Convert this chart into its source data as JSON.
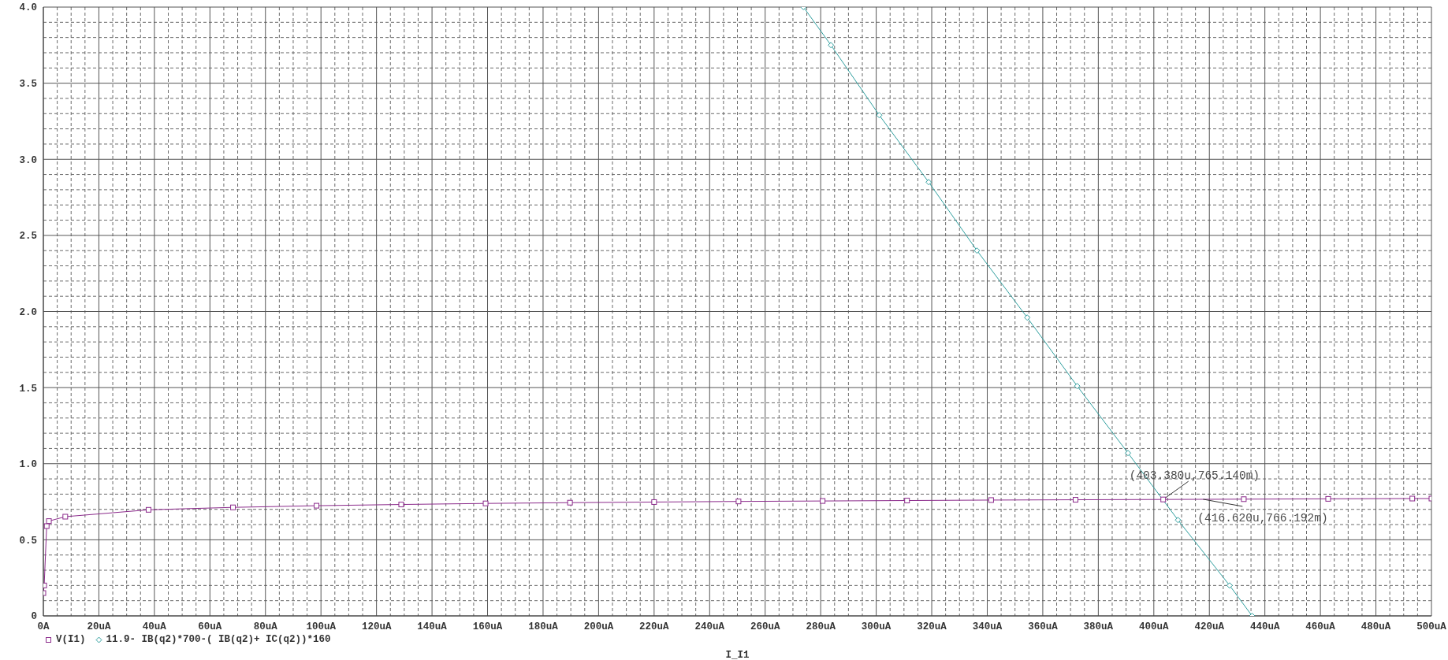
{
  "chart_data": {
    "type": "line",
    "xlabel": "I_I1",
    "grid": true,
    "legend": "bottom left",
    "xlim": [
      0,
      500
    ],
    "xticks": [
      {
        "value": 0,
        "label": "0A"
      },
      {
        "value": 5,
        "label": null
      },
      {
        "value": 10,
        "label": null
      },
      {
        "value": 15,
        "label": null
      },
      {
        "value": 20,
        "label": "20uA"
      },
      {
        "value": 25,
        "label": null
      },
      {
        "value": 30,
        "label": null
      },
      {
        "value": 35,
        "label": null
      },
      {
        "value": 40,
        "label": "40uA"
      },
      {
        "value": 45,
        "label": null
      },
      {
        "value": 50,
        "label": null
      },
      {
        "value": 55,
        "label": null
      },
      {
        "value": 60,
        "label": "60uA"
      },
      {
        "value": 65,
        "label": null
      },
      {
        "value": 70,
        "label": null
      },
      {
        "value": 75,
        "label": null
      },
      {
        "value": 80,
        "label": "80uA"
      },
      {
        "value": 85,
        "label": null
      },
      {
        "value": 90,
        "label": null
      },
      {
        "value": 95,
        "label": null
      },
      {
        "value": 100,
        "label": "100uA"
      },
      {
        "value": 105,
        "label": null
      },
      {
        "value": 110,
        "label": null
      },
      {
        "value": 115,
        "label": null
      },
      {
        "value": 120,
        "label": "120uA"
      },
      {
        "value": 125,
        "label": null
      },
      {
        "value": 130,
        "label": null
      },
      {
        "value": 135,
        "label": null
      },
      {
        "value": 140,
        "label": "140uA"
      },
      {
        "value": 145,
        "label": null
      },
      {
        "value": 150,
        "label": null
      },
      {
        "value": 155,
        "label": null
      },
      {
        "value": 160,
        "label": "160uA"
      },
      {
        "value": 165,
        "label": null
      },
      {
        "value": 170,
        "label": null
      },
      {
        "value": 175,
        "label": null
      },
      {
        "value": 180,
        "label": "180uA"
      },
      {
        "value": 185,
        "label": null
      },
      {
        "value": 190,
        "label": null
      },
      {
        "value": 195,
        "label": null
      },
      {
        "value": 200,
        "label": "200uA"
      },
      {
        "value": 205,
        "label": null
      },
      {
        "value": 210,
        "label": null
      },
      {
        "value": 215,
        "label": null
      },
      {
        "value": 220,
        "label": "220uA"
      },
      {
        "value": 225,
        "label": null
      },
      {
        "value": 230,
        "label": null
      },
      {
        "value": 235,
        "label": null
      },
      {
        "value": 240,
        "label": "240uA"
      },
      {
        "value": 245,
        "label": null
      },
      {
        "value": 250,
        "label": null
      },
      {
        "value": 255,
        "label": null
      },
      {
        "value": 260,
        "label": "260uA"
      },
      {
        "value": 265,
        "label": null
      },
      {
        "value": 270,
        "label": null
      },
      {
        "value": 275,
        "label": null
      },
      {
        "value": 280,
        "label": "280uA"
      },
      {
        "value": 285,
        "label": null
      },
      {
        "value": 290,
        "label": null
      },
      {
        "value": 295,
        "label": null
      },
      {
        "value": 300,
        "label": "300uA"
      },
      {
        "value": 305,
        "label": null
      },
      {
        "value": 310,
        "label": null
      },
      {
        "value": 315,
        "label": null
      },
      {
        "value": 320,
        "label": "320uA"
      },
      {
        "value": 325,
        "label": null
      },
      {
        "value": 330,
        "label": null
      },
      {
        "value": 335,
        "label": null
      },
      {
        "value": 340,
        "label": "340uA"
      },
      {
        "value": 345,
        "label": null
      },
      {
        "value": 350,
        "label": null
      },
      {
        "value": 355,
        "label": null
      },
      {
        "value": 360,
        "label": "360uA"
      },
      {
        "value": 365,
        "label": null
      },
      {
        "value": 370,
        "label": null
      },
      {
        "value": 375,
        "label": null
      },
      {
        "value": 380,
        "label": "380uA"
      },
      {
        "value": 385,
        "label": null
      },
      {
        "value": 390,
        "label": null
      },
      {
        "value": 395,
        "label": null
      },
      {
        "value": 400,
        "label": "400uA"
      },
      {
        "value": 405,
        "label": null
      },
      {
        "value": 410,
        "label": null
      },
      {
        "value": 415,
        "label": null
      },
      {
        "value": 420,
        "label": "420uA"
      },
      {
        "value": 425,
        "label": null
      },
      {
        "value": 430,
        "label": null
      },
      {
        "value": 435,
        "label": null
      },
      {
        "value": 440,
        "label": "440uA"
      },
      {
        "value": 445,
        "label": null
      },
      {
        "value": 450,
        "label": null
      },
      {
        "value": 455,
        "label": null
      },
      {
        "value": 460,
        "label": "460uA"
      },
      {
        "value": 465,
        "label": null
      },
      {
        "value": 470,
        "label": null
      },
      {
        "value": 475,
        "label": null
      },
      {
        "value": 480,
        "label": "480uA"
      },
      {
        "value": 485,
        "label": null
      },
      {
        "value": 490,
        "label": null
      },
      {
        "value": 495,
        "label": null
      },
      {
        "value": 500,
        "label": "500uA"
      }
    ],
    "ylim": [
      0,
      4
    ],
    "yticks": [
      0,
      {
        "value": 0.1,
        "label": null
      },
      {
        "value": 0.2,
        "label": null
      },
      {
        "value": 0.3,
        "label": null
      },
      {
        "value": 0.4,
        "label": null
      },
      0.5,
      {
        "value": 0.6,
        "label": null
      },
      {
        "value": 0.7,
        "label": null
      },
      {
        "value": 0.8,
        "label": null
      },
      {
        "value": 0.9,
        "label": null
      },
      {
        "value": 1,
        "label": "1.0"
      },
      {
        "value": 1.1,
        "label": null
      },
      {
        "value": 1.2,
        "label": null
      },
      {
        "value": 1.3,
        "label": null
      },
      {
        "value": 1.4,
        "label": null
      },
      1.5,
      {
        "value": 1.6,
        "label": null
      },
      {
        "value": 1.7,
        "label": null
      },
      {
        "value": 1.8,
        "label": null
      },
      {
        "value": 1.9,
        "label": null
      },
      {
        "value": 2,
        "label": "2.0"
      },
      {
        "value": 2.1,
        "label": null
      },
      {
        "value": 2.2,
        "label": null
      },
      {
        "value": 2.3,
        "label": null
      },
      {
        "value": 2.4,
        "label": null
      },
      2.5,
      {
        "value": 2.6,
        "label": null
      },
      {
        "value": 2.7,
        "label": null
      },
      {
        "value": 2.8,
        "label": null
      },
      {
        "value": 2.9,
        "label": null
      },
      {
        "value": 3,
        "label": "3.0"
      },
      {
        "value": 3.1,
        "label": null
      },
      {
        "value": 3.2,
        "label": null
      },
      {
        "value": 3.3,
        "label": null
      },
      {
        "value": 3.4,
        "label": null
      },
      3.5,
      {
        "value": 3.6,
        "label": null
      },
      {
        "value": 3.7,
        "label": null
      },
      {
        "value": 3.8,
        "label": null
      },
      {
        "value": 3.9,
        "label": null
      },
      {
        "value": 4,
        "label": "4.0"
      }
    ],
    "series": [
      {
        "name": "V(I1)",
        "color": "#8b2a8b",
        "marker": "square",
        "x": [
          0,
          0.3,
          1.2,
          2,
          7.9,
          37.9,
          68.3,
          98.4,
          128.9,
          159.3,
          189.7,
          220,
          250.4,
          280.7,
          311.1,
          341.4,
          371.8,
          403.38,
          432.4,
          462.8,
          493.1,
          500
        ],
        "values": [
          0.15,
          0.2,
          0.59,
          0.623,
          0.652,
          0.697,
          0.713,
          0.724,
          0.732,
          0.739,
          0.744,
          0.748,
          0.752,
          0.755,
          0.758,
          0.761,
          0.763,
          0.765,
          0.767,
          0.769,
          0.771,
          0.771
        ]
      },
      {
        "name": "11.9- IB(q2)*700-( IB(q2)+ IC(q2))*160",
        "color": "#2e9e9e",
        "marker": "diamond",
        "x": [
          273.8,
          283.7,
          301.1,
          318.9,
          336.3,
          354.4,
          372.4,
          390.7,
          408.7,
          427.3,
          435.4
        ],
        "values": [
          4.0,
          3.75,
          3.29,
          2.85,
          2.4,
          1.96,
          1.51,
          1.07,
          0.63,
          0.2,
          0
        ]
      }
    ],
    "annotations": [
      {
        "text": "(403.380u,765.140m)",
        "x": 403.38,
        "y": 0.76514
      },
      {
        "text": "(416.620u,766.192m)",
        "x": 416.62,
        "y": 0.766192
      }
    ]
  }
}
